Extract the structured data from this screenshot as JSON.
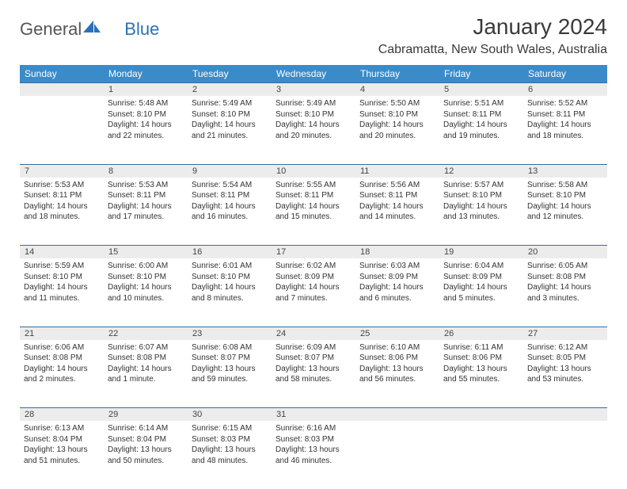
{
  "logo": {
    "text1": "General",
    "text2": "Blue",
    "color1": "#555555",
    "color2": "#2a71b8"
  },
  "header": {
    "title": "January 2024",
    "location": "Cabramatta, New South Wales, Australia"
  },
  "colors": {
    "header_bg": "#3b8bc9",
    "header_text": "#ffffff",
    "daynum_bg": "#ececec",
    "border": "#2f6fa8",
    "text": "#333333"
  },
  "day_names": [
    "Sunday",
    "Monday",
    "Tuesday",
    "Wednesday",
    "Thursday",
    "Friday",
    "Saturday"
  ],
  "weeks": [
    {
      "nums": [
        "",
        "1",
        "2",
        "3",
        "4",
        "5",
        "6"
      ],
      "cells": [
        {},
        {
          "sr": "Sunrise: 5:48 AM",
          "ss": "Sunset: 8:10 PM",
          "dl1": "Daylight: 14 hours",
          "dl2": "and 22 minutes."
        },
        {
          "sr": "Sunrise: 5:49 AM",
          "ss": "Sunset: 8:10 PM",
          "dl1": "Daylight: 14 hours",
          "dl2": "and 21 minutes."
        },
        {
          "sr": "Sunrise: 5:49 AM",
          "ss": "Sunset: 8:10 PM",
          "dl1": "Daylight: 14 hours",
          "dl2": "and 20 minutes."
        },
        {
          "sr": "Sunrise: 5:50 AM",
          "ss": "Sunset: 8:10 PM",
          "dl1": "Daylight: 14 hours",
          "dl2": "and 20 minutes."
        },
        {
          "sr": "Sunrise: 5:51 AM",
          "ss": "Sunset: 8:11 PM",
          "dl1": "Daylight: 14 hours",
          "dl2": "and 19 minutes."
        },
        {
          "sr": "Sunrise: 5:52 AM",
          "ss": "Sunset: 8:11 PM",
          "dl1": "Daylight: 14 hours",
          "dl2": "and 18 minutes."
        }
      ]
    },
    {
      "nums": [
        "7",
        "8",
        "9",
        "10",
        "11",
        "12",
        "13"
      ],
      "cells": [
        {
          "sr": "Sunrise: 5:53 AM",
          "ss": "Sunset: 8:11 PM",
          "dl1": "Daylight: 14 hours",
          "dl2": "and 18 minutes."
        },
        {
          "sr": "Sunrise: 5:53 AM",
          "ss": "Sunset: 8:11 PM",
          "dl1": "Daylight: 14 hours",
          "dl2": "and 17 minutes."
        },
        {
          "sr": "Sunrise: 5:54 AM",
          "ss": "Sunset: 8:11 PM",
          "dl1": "Daylight: 14 hours",
          "dl2": "and 16 minutes."
        },
        {
          "sr": "Sunrise: 5:55 AM",
          "ss": "Sunset: 8:11 PM",
          "dl1": "Daylight: 14 hours",
          "dl2": "and 15 minutes."
        },
        {
          "sr": "Sunrise: 5:56 AM",
          "ss": "Sunset: 8:11 PM",
          "dl1": "Daylight: 14 hours",
          "dl2": "and 14 minutes."
        },
        {
          "sr": "Sunrise: 5:57 AM",
          "ss": "Sunset: 8:10 PM",
          "dl1": "Daylight: 14 hours",
          "dl2": "and 13 minutes."
        },
        {
          "sr": "Sunrise: 5:58 AM",
          "ss": "Sunset: 8:10 PM",
          "dl1": "Daylight: 14 hours",
          "dl2": "and 12 minutes."
        }
      ]
    },
    {
      "nums": [
        "14",
        "15",
        "16",
        "17",
        "18",
        "19",
        "20"
      ],
      "cells": [
        {
          "sr": "Sunrise: 5:59 AM",
          "ss": "Sunset: 8:10 PM",
          "dl1": "Daylight: 14 hours",
          "dl2": "and 11 minutes."
        },
        {
          "sr": "Sunrise: 6:00 AM",
          "ss": "Sunset: 8:10 PM",
          "dl1": "Daylight: 14 hours",
          "dl2": "and 10 minutes."
        },
        {
          "sr": "Sunrise: 6:01 AM",
          "ss": "Sunset: 8:10 PM",
          "dl1": "Daylight: 14 hours",
          "dl2": "and 8 minutes."
        },
        {
          "sr": "Sunrise: 6:02 AM",
          "ss": "Sunset: 8:09 PM",
          "dl1": "Daylight: 14 hours",
          "dl2": "and 7 minutes."
        },
        {
          "sr": "Sunrise: 6:03 AM",
          "ss": "Sunset: 8:09 PM",
          "dl1": "Daylight: 14 hours",
          "dl2": "and 6 minutes."
        },
        {
          "sr": "Sunrise: 6:04 AM",
          "ss": "Sunset: 8:09 PM",
          "dl1": "Daylight: 14 hours",
          "dl2": "and 5 minutes."
        },
        {
          "sr": "Sunrise: 6:05 AM",
          "ss": "Sunset: 8:08 PM",
          "dl1": "Daylight: 14 hours",
          "dl2": "and 3 minutes."
        }
      ]
    },
    {
      "nums": [
        "21",
        "22",
        "23",
        "24",
        "25",
        "26",
        "27"
      ],
      "cells": [
        {
          "sr": "Sunrise: 6:06 AM",
          "ss": "Sunset: 8:08 PM",
          "dl1": "Daylight: 14 hours",
          "dl2": "and 2 minutes."
        },
        {
          "sr": "Sunrise: 6:07 AM",
          "ss": "Sunset: 8:08 PM",
          "dl1": "Daylight: 14 hours",
          "dl2": "and 1 minute."
        },
        {
          "sr": "Sunrise: 6:08 AM",
          "ss": "Sunset: 8:07 PM",
          "dl1": "Daylight: 13 hours",
          "dl2": "and 59 minutes."
        },
        {
          "sr": "Sunrise: 6:09 AM",
          "ss": "Sunset: 8:07 PM",
          "dl1": "Daylight: 13 hours",
          "dl2": "and 58 minutes."
        },
        {
          "sr": "Sunrise: 6:10 AM",
          "ss": "Sunset: 8:06 PM",
          "dl1": "Daylight: 13 hours",
          "dl2": "and 56 minutes."
        },
        {
          "sr": "Sunrise: 6:11 AM",
          "ss": "Sunset: 8:06 PM",
          "dl1": "Daylight: 13 hours",
          "dl2": "and 55 minutes."
        },
        {
          "sr": "Sunrise: 6:12 AM",
          "ss": "Sunset: 8:05 PM",
          "dl1": "Daylight: 13 hours",
          "dl2": "and 53 minutes."
        }
      ]
    },
    {
      "nums": [
        "28",
        "29",
        "30",
        "31",
        "",
        "",
        ""
      ],
      "cells": [
        {
          "sr": "Sunrise: 6:13 AM",
          "ss": "Sunset: 8:04 PM",
          "dl1": "Daylight: 13 hours",
          "dl2": "and 51 minutes."
        },
        {
          "sr": "Sunrise: 6:14 AM",
          "ss": "Sunset: 8:04 PM",
          "dl1": "Daylight: 13 hours",
          "dl2": "and 50 minutes."
        },
        {
          "sr": "Sunrise: 6:15 AM",
          "ss": "Sunset: 8:03 PM",
          "dl1": "Daylight: 13 hours",
          "dl2": "and 48 minutes."
        },
        {
          "sr": "Sunrise: 6:16 AM",
          "ss": "Sunset: 8:03 PM",
          "dl1": "Daylight: 13 hours",
          "dl2": "and 46 minutes."
        },
        {},
        {},
        {}
      ]
    }
  ]
}
